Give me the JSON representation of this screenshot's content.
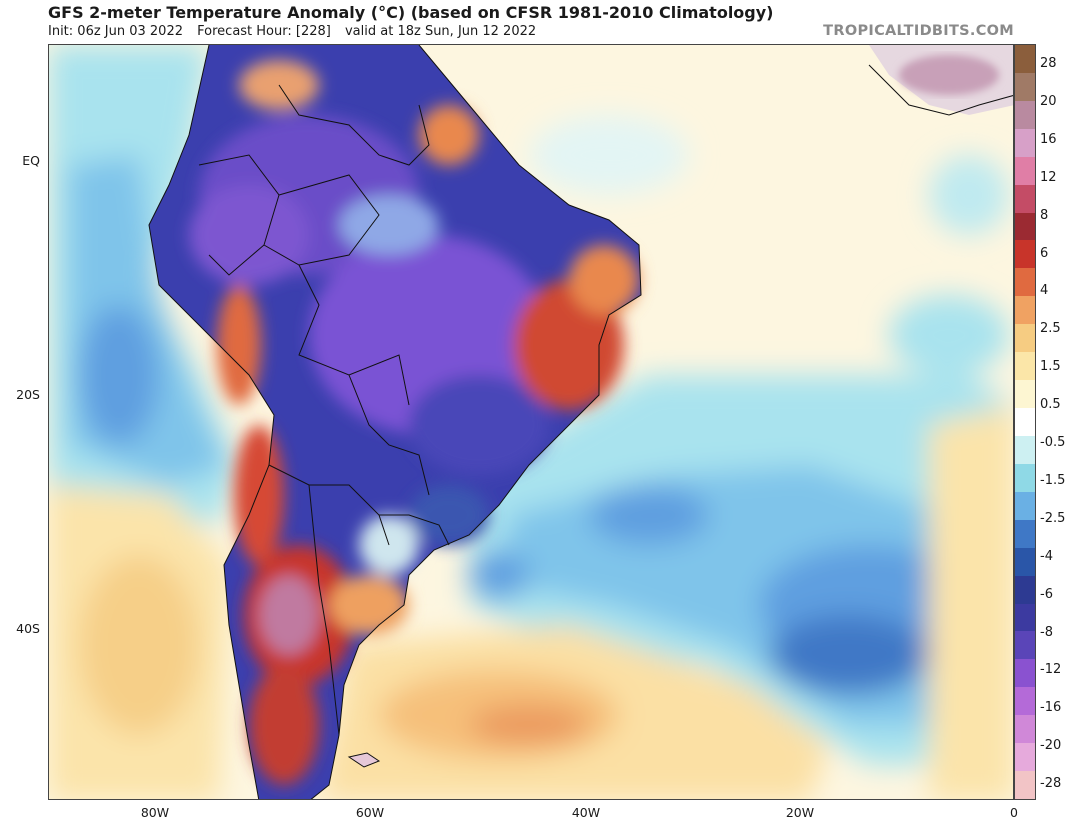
{
  "header": {
    "title": "GFS 2-meter Temperature Anomaly (°C) (based on CFSR 1981-2010 Climatology)",
    "init": "Init: 06z Jun 03 2022",
    "forecast_hour": "Forecast Hour: [228]",
    "valid": "valid at 18z Sun, Jun 12 2022",
    "brand": "TROPICALTIDBITS.COM"
  },
  "axes": {
    "latitude_labels": [
      "EQ",
      "20S",
      "40S"
    ],
    "longitude_labels": [
      "80W",
      "60W",
      "40W",
      "20W",
      "0"
    ]
  },
  "colorbar": {
    "labels": [
      "28",
      "20",
      "16",
      "12",
      "8",
      "6",
      "4",
      "2.5",
      "1.5",
      "0.5",
      "-0.5",
      "-1.5",
      "-2.5",
      "-4",
      "-6",
      "-8",
      "-12",
      "-16",
      "-20",
      "-28"
    ],
    "colors": [
      "#8b5e3c",
      "#a07a66",
      "#b98aa0",
      "#d7a0c8",
      "#e07ea6",
      "#c44c66",
      "#9b2a32",
      "#c8342a",
      "#e06a40",
      "#f0a262",
      "#f6cc82",
      "#fbe6a8",
      "#fdf6d2",
      "#ffffff",
      "#cdf0f2",
      "#8fd9e6",
      "#6ab0e4",
      "#3f78c6",
      "#2a56a8",
      "#2d3a92",
      "#3c3aa0",
      "#5a45b8",
      "#8a52d0",
      "#b46ad8",
      "#d088d8",
      "#e6aadc",
      "#f2c4c6"
    ]
  }
}
